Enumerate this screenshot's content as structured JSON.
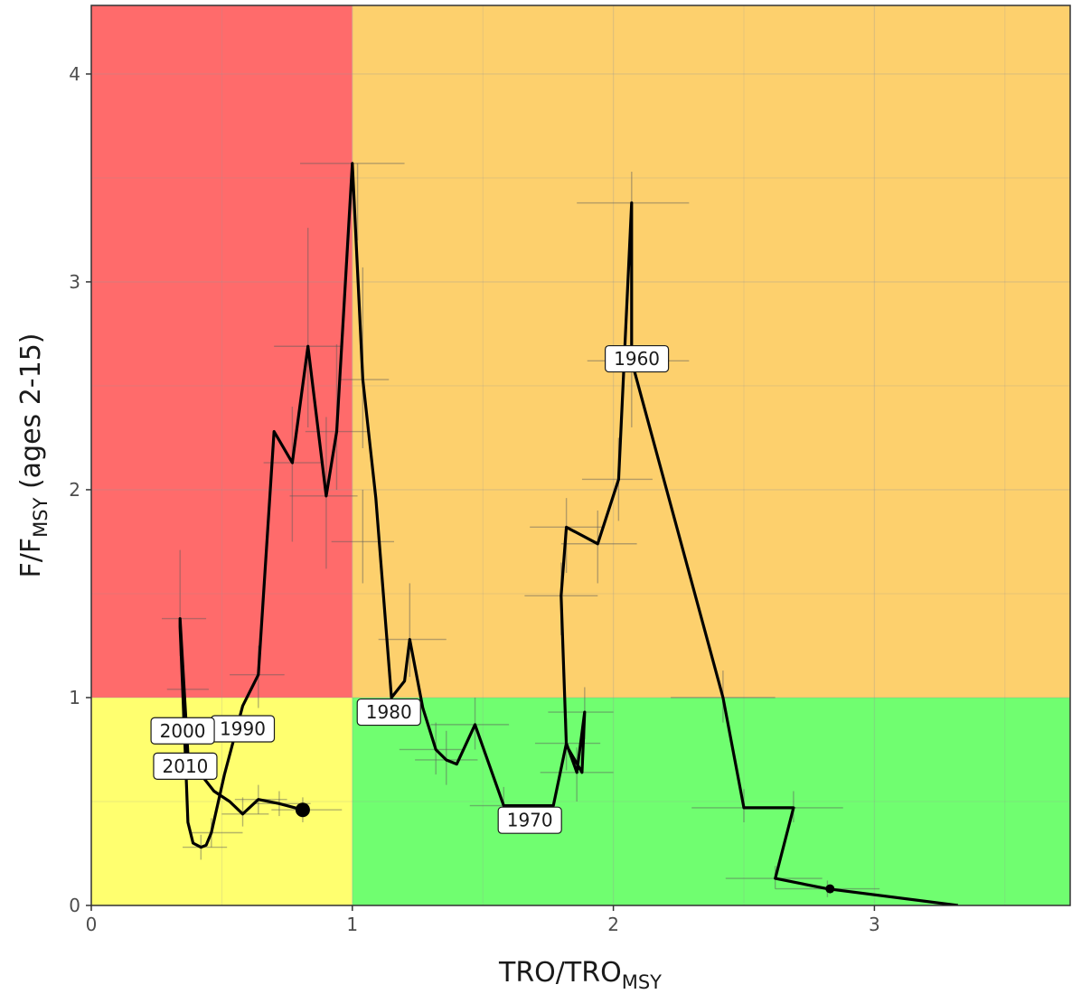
{
  "chart_data": {
    "type": "line",
    "subtype": "kobe-phase-plot",
    "xlabel": "TRO/TRO",
    "xlabel_subscript": "MSY",
    "ylabel": "F/F",
    "ylabel_subscript": "MSY",
    "ylabel_suffix": " (ages 2-15)",
    "xlim": [
      0,
      3.75
    ],
    "ylim": [
      0,
      4.33
    ],
    "xticks": [
      0,
      1,
      2,
      3
    ],
    "yticks": [
      0,
      1,
      2,
      3,
      4
    ],
    "tick_labels_x": [
      "0",
      "1",
      "2",
      "3"
    ],
    "tick_labels_y": [
      "0",
      "1",
      "2",
      "3",
      "4"
    ],
    "grid": true,
    "quadrants": [
      {
        "name": "overfished-overfishing",
        "x": [
          0,
          1
        ],
        "y": [
          1,
          4.33
        ],
        "color": "#ff6b6b"
      },
      {
        "name": "not-overfished-overfishing",
        "x": [
          1,
          3.75
        ],
        "y": [
          1,
          4.33
        ],
        "color": "#fdd06d"
      },
      {
        "name": "overfished-no-overfishing",
        "x": [
          0,
          1
        ],
        "y": [
          0,
          1
        ],
        "color": "#ffff6f"
      },
      {
        "name": "not-overfished-no-overfishing",
        "x": [
          1,
          3.75
        ],
        "y": [
          0,
          1
        ],
        "color": "#70fe70"
      }
    ],
    "series": [
      {
        "x": [
          3.32,
          2.82,
          2.62,
          2.69,
          2.5,
          2.42,
          2.07,
          2.07,
          2.02,
          1.94,
          1.82,
          1.8,
          1.82,
          1.88,
          1.89,
          1.86,
          1.82,
          1.77,
          1.58,
          1.47,
          1.4,
          1.36,
          1.32,
          1.27,
          1.22,
          1.2,
          1.15,
          1.09,
          1.04,
          1.0,
          0.94,
          0.9,
          0.83,
          0.77,
          0.7,
          0.64,
          0.58,
          0.51,
          0.46,
          0.44,
          0.42,
          0.39,
          0.37,
          0.36,
          0.35,
          0.34,
          0.34,
          0.37,
          0.42,
          0.47,
          0.53,
          0.58,
          0.64,
          0.72,
          0.81
        ],
        "y": [
          0.0,
          0.08,
          0.13,
          0.47,
          0.47,
          1.0,
          2.62,
          3.38,
          2.05,
          1.74,
          1.82,
          1.49,
          0.77,
          0.64,
          0.93,
          0.64,
          0.78,
          0.48,
          0.48,
          0.87,
          0.68,
          0.7,
          0.75,
          0.95,
          1.28,
          1.08,
          1.0,
          1.96,
          2.53,
          3.57,
          2.28,
          1.97,
          2.69,
          2.13,
          2.28,
          1.11,
          0.96,
          0.63,
          0.35,
          0.29,
          0.28,
          0.3,
          0.4,
          0.73,
          1.04,
          1.34,
          1.38,
          0.73,
          0.63,
          0.55,
          0.5,
          0.44,
          0.51,
          0.49,
          0.46
        ]
      }
    ],
    "uncertainty": [
      {
        "x": 1.02,
        "y": 3.57,
        "x_lo": 0.8,
        "x_hi": 1.2,
        "y_lo": 3.2,
        "y_hi": 3.57
      },
      {
        "x": 2.07,
        "y": 3.38,
        "x_lo": 1.86,
        "x_hi": 2.29,
        "y_lo": 3.05,
        "y_hi": 3.53
      },
      {
        "x": 2.07,
        "y": 2.62,
        "x_lo": 1.9,
        "x_hi": 2.29,
        "y_lo": 2.3,
        "y_hi": 2.85
      },
      {
        "x": 2.02,
        "y": 2.05,
        "x_lo": 1.88,
        "x_hi": 2.15,
        "y_lo": 1.85,
        "y_hi": 2.25
      },
      {
        "x": 1.82,
        "y": 1.82,
        "x_lo": 1.68,
        "x_hi": 1.96,
        "y_lo": 1.6,
        "y_hi": 1.96
      },
      {
        "x": 1.94,
        "y": 1.74,
        "x_lo": 1.8,
        "x_hi": 2.09,
        "y_lo": 1.55,
        "y_hi": 1.9
      },
      {
        "x": 1.8,
        "y": 1.49,
        "x_lo": 1.66,
        "x_hi": 1.94,
        "y_lo": 1.3,
        "y_hi": 1.65
      },
      {
        "x": 1.22,
        "y": 1.28,
        "x_lo": 1.1,
        "x_hi": 1.36,
        "y_lo": 1.1,
        "y_hi": 1.55
      },
      {
        "x": 0.83,
        "y": 2.69,
        "x_lo": 0.7,
        "x_hi": 0.96,
        "y_lo": 2.3,
        "y_hi": 3.26
      },
      {
        "x": 0.94,
        "y": 2.28,
        "x_lo": 0.82,
        "x_hi": 1.06,
        "y_lo": 2.0,
        "y_hi": 2.7
      },
      {
        "x": 0.9,
        "y": 1.97,
        "x_lo": 0.76,
        "x_hi": 1.02,
        "y_lo": 1.62,
        "y_hi": 2.35
      },
      {
        "x": 0.77,
        "y": 2.13,
        "x_lo": 0.66,
        "x_hi": 0.88,
        "y_lo": 1.75,
        "y_hi": 2.4
      },
      {
        "x": 1.04,
        "y": 2.53,
        "x_lo": 0.95,
        "x_hi": 1.14,
        "y_lo": 2.2,
        "y_hi": 3.07
      },
      {
        "x": 1.04,
        "y": 1.75,
        "x_lo": 0.92,
        "x_hi": 1.16,
        "y_lo": 1.55,
        "y_hi": 2.0
      },
      {
        "x": 0.34,
        "y": 1.38,
        "x_lo": 0.27,
        "x_hi": 0.44,
        "y_lo": 1.2,
        "y_hi": 1.71
      },
      {
        "x": 0.35,
        "y": 1.04,
        "x_lo": 0.29,
        "x_hi": 0.45,
        "y_lo": 0.9,
        "y_hi": 1.2
      },
      {
        "x": 0.64,
        "y": 1.11,
        "x_lo": 0.53,
        "x_hi": 0.74,
        "y_lo": 0.95,
        "y_hi": 1.25
      },
      {
        "x": 1.47,
        "y": 0.87,
        "x_lo": 1.3,
        "x_hi": 1.6,
        "y_lo": 0.75,
        "y_hi": 1.0
      },
      {
        "x": 1.89,
        "y": 0.93,
        "x_lo": 1.75,
        "x_hi": 2.0,
        "y_lo": 0.8,
        "y_hi": 1.05
      },
      {
        "x": 1.86,
        "y": 0.64,
        "x_lo": 1.72,
        "x_hi": 2.0,
        "y_lo": 0.5,
        "y_hi": 0.76
      },
      {
        "x": 1.82,
        "y": 0.78,
        "x_lo": 1.7,
        "x_hi": 1.95,
        "y_lo": 0.65,
        "y_hi": 0.9
      },
      {
        "x": 1.36,
        "y": 0.7,
        "x_lo": 1.24,
        "x_hi": 1.48,
        "y_lo": 0.58,
        "y_hi": 0.84
      },
      {
        "x": 1.32,
        "y": 0.75,
        "x_lo": 1.18,
        "x_hi": 1.42,
        "y_lo": 0.63,
        "y_hi": 0.88
      },
      {
        "x": 1.58,
        "y": 0.48,
        "x_lo": 1.45,
        "x_hi": 1.72,
        "y_lo": 0.4,
        "y_hi": 0.57
      },
      {
        "x": 2.42,
        "y": 1.0,
        "x_lo": 2.22,
        "x_hi": 2.62,
        "y_lo": 0.88,
        "y_hi": 1.13
      },
      {
        "x": 2.5,
        "y": 0.47,
        "x_lo": 2.3,
        "x_hi": 2.7,
        "y_lo": 0.4,
        "y_hi": 0.56
      },
      {
        "x": 2.69,
        "y": 0.47,
        "x_lo": 2.5,
        "x_hi": 2.88,
        "y_lo": 0.4,
        "y_hi": 0.55
      },
      {
        "x": 2.62,
        "y": 0.13,
        "x_lo": 2.43,
        "x_hi": 2.8,
        "y_lo": 0.08,
        "y_hi": 0.19
      },
      {
        "x": 2.82,
        "y": 0.08,
        "x_lo": 2.62,
        "x_hi": 3.02,
        "y_lo": 0.04,
        "y_hi": 0.12
      },
      {
        "x": 0.42,
        "y": 0.28,
        "x_lo": 0.35,
        "x_hi": 0.52,
        "y_lo": 0.22,
        "y_hi": 0.34
      },
      {
        "x": 0.46,
        "y": 0.35,
        "x_lo": 0.38,
        "x_hi": 0.58,
        "y_lo": 0.28,
        "y_hi": 0.42
      },
      {
        "x": 0.58,
        "y": 0.44,
        "x_lo": 0.5,
        "x_hi": 0.68,
        "y_lo": 0.38,
        "y_hi": 0.52
      },
      {
        "x": 0.64,
        "y": 0.51,
        "x_lo": 0.55,
        "x_hi": 0.75,
        "y_lo": 0.44,
        "y_hi": 0.58
      },
      {
        "x": 0.72,
        "y": 0.49,
        "x_lo": 0.62,
        "x_hi": 0.84,
        "y_lo": 0.43,
        "y_hi": 0.55
      },
      {
        "x": 0.81,
        "y": 0.46,
        "x_lo": 0.69,
        "x_hi": 0.96,
        "y_lo": 0.4,
        "y_hi": 0.52
      }
    ],
    "year_labels": [
      {
        "text": "1960",
        "x": 2.09,
        "y": 2.63
      },
      {
        "text": "1970",
        "x": 1.68,
        "y": 0.41
      },
      {
        "text": "1980",
        "x": 1.14,
        "y": 0.93
      },
      {
        "text": "1990",
        "x": 0.58,
        "y": 0.85
      },
      {
        "text": "2000",
        "x": 0.35,
        "y": 0.84
      },
      {
        "text": "2010",
        "x": 0.36,
        "y": 0.67
      }
    ],
    "markers": [
      {
        "kind": "end",
        "x": 0.81,
        "y": 0.46
      },
      {
        "kind": "start",
        "x": 2.83,
        "y": 0.08
      }
    ]
  }
}
